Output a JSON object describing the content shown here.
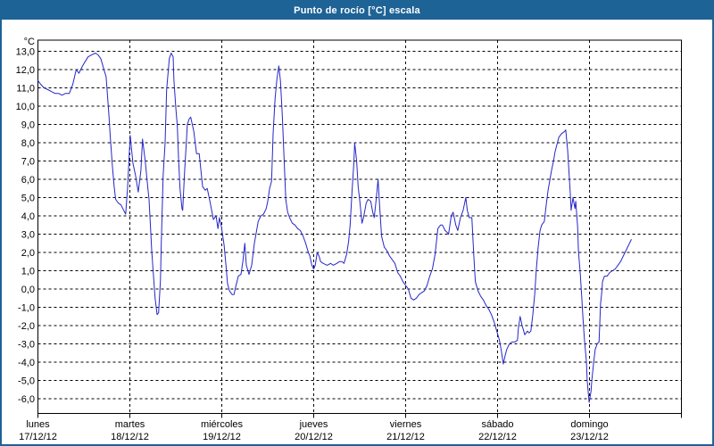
{
  "window": {
    "title": "Punto de rocío [°C] escala"
  },
  "chart_data": {
    "type": "line",
    "title": "Punto de rocío [°C] escala",
    "grid": "dashed horizontal per 1°C and dashed vertical per day",
    "legend": "none",
    "y_axis": {
      "unit_label": "°C",
      "min": -6.0,
      "max": 13.0,
      "tick_step": 1.0,
      "tick_labels": [
        "13,0",
        "12,0",
        "11,0",
        "10,0",
        "9,0",
        "8,0",
        "7,0",
        "6,0",
        "5,0",
        "4,0",
        "3,0",
        "2,0",
        "1,0",
        "0,0",
        "-1,0",
        "-2,0",
        "-3,0",
        "-4,0",
        "-5,0",
        "-6,0"
      ]
    },
    "x_axis": {
      "range_hours": [
        0,
        168
      ],
      "hours_per_day": 24,
      "days": [
        {
          "weekday": "lunes",
          "date": "17/12/12"
        },
        {
          "weekday": "martes",
          "date": "18/12/12"
        },
        {
          "weekday": "miércoles",
          "date": "19/12/12"
        },
        {
          "weekday": "jueves",
          "date": "20/12/12"
        },
        {
          "weekday": "viernes",
          "date": "21/12/12"
        },
        {
          "weekday": "sábado",
          "date": "22/12/12"
        },
        {
          "weekday": "domingo",
          "date": "23/12/12"
        }
      ]
    },
    "series": [
      {
        "name": "Punto de rocío",
        "color": "#2626c9",
        "points": [
          [
            0,
            11.4
          ],
          [
            0.7,
            11.2
          ],
          [
            1.6,
            11.0
          ],
          [
            2.6,
            10.9
          ],
          [
            3.5,
            10.8
          ],
          [
            4.4,
            10.7
          ],
          [
            5.4,
            10.7
          ],
          [
            6.3,
            10.6
          ],
          [
            7.2,
            10.7
          ],
          [
            8.2,
            10.7
          ],
          [
            9.1,
            11.2
          ],
          [
            10,
            12.0
          ],
          [
            10.7,
            11.8
          ],
          [
            11.4,
            12.1
          ],
          [
            12.2,
            12.4
          ],
          [
            13.1,
            12.7
          ],
          [
            14,
            12.8
          ],
          [
            15,
            12.9
          ],
          [
            15.7,
            12.8
          ],
          [
            16.4,
            12.6
          ],
          [
            17.1,
            12.1
          ],
          [
            17.8,
            11.6
          ],
          [
            18.5,
            9.6
          ],
          [
            18.9,
            8.3
          ],
          [
            19.4,
            6.8
          ],
          [
            19.9,
            5.6
          ],
          [
            20.3,
            4.9
          ],
          [
            21,
            4.7
          ],
          [
            21.7,
            4.6
          ],
          [
            22.4,
            4.3
          ],
          [
            22.9,
            4.1
          ],
          [
            23.4,
            5.5
          ],
          [
            24.1,
            8.4
          ],
          [
            24.8,
            6.9
          ],
          [
            25.5,
            6.2
          ],
          [
            26.2,
            5.3
          ],
          [
            26.9,
            6.5
          ],
          [
            27.3,
            8.2
          ],
          [
            28,
            7.0
          ],
          [
            28.7,
            5.5
          ],
          [
            29,
            4.9
          ],
          [
            29.7,
            2.1
          ],
          [
            30.1,
            0.9
          ],
          [
            30.6,
            -0.5
          ],
          [
            31.1,
            -1.4
          ],
          [
            31.5,
            -1.3
          ],
          [
            32,
            0.5
          ],
          [
            32.2,
            2.5
          ],
          [
            32.7,
            6.2
          ],
          [
            33.2,
            8.0
          ],
          [
            33.6,
            10.9
          ],
          [
            34.3,
            12.6
          ],
          [
            34.8,
            12.9
          ],
          [
            35.3,
            12.7
          ],
          [
            35.5,
            11.4
          ],
          [
            36,
            9.9
          ],
          [
            36.4,
            8.9
          ],
          [
            36.7,
            7.2
          ],
          [
            37.1,
            5.5
          ],
          [
            37.6,
            4.4
          ],
          [
            37.8,
            4.3
          ],
          [
            38.3,
            6.5
          ],
          [
            38.8,
            8.2
          ],
          [
            39,
            9.0
          ],
          [
            39.5,
            9.3
          ],
          [
            39.9,
            9.4
          ],
          [
            40.7,
            8.6
          ],
          [
            41.4,
            7.4
          ],
          [
            42.1,
            7.4
          ],
          [
            43,
            5.6
          ],
          [
            43.7,
            5.4
          ],
          [
            44.2,
            5.5
          ],
          [
            44.9,
            4.8
          ],
          [
            45.8,
            3.8
          ],
          [
            46.5,
            4.0
          ],
          [
            47,
            3.3
          ],
          [
            47.4,
            3.9
          ],
          [
            47.9,
            3.4
          ],
          [
            48.6,
            2.4
          ],
          [
            49.1,
            1.3
          ],
          [
            49.5,
            0.3
          ],
          [
            50,
            -0.1
          ],
          [
            50.7,
            -0.3
          ],
          [
            51.2,
            -0.3
          ],
          [
            51.6,
            0.1
          ],
          [
            52.3,
            0.7
          ],
          [
            53,
            0.8
          ],
          [
            53.5,
            1.5
          ],
          [
            54,
            2.5
          ],
          [
            54.4,
            1.3
          ],
          [
            55.1,
            0.8
          ],
          [
            55.8,
            1.3
          ],
          [
            56.5,
            2.5
          ],
          [
            57.5,
            3.7
          ],
          [
            58.2,
            4.0
          ],
          [
            58.9,
            4.1
          ],
          [
            59.6,
            4.4
          ],
          [
            60,
            4.8
          ],
          [
            60.5,
            5.5
          ],
          [
            61,
            5.9
          ],
          [
            61.4,
            8.5
          ],
          [
            61.9,
            10.4
          ],
          [
            62.4,
            11.5
          ],
          [
            62.9,
            12.2
          ],
          [
            63.3,
            11.4
          ],
          [
            63.8,
            9.5
          ],
          [
            64.3,
            6.9
          ],
          [
            64.7,
            4.9
          ],
          [
            65.2,
            4.2
          ],
          [
            65.7,
            3.9
          ],
          [
            66.4,
            3.6
          ],
          [
            67.1,
            3.5
          ],
          [
            67.8,
            3.3
          ],
          [
            68.5,
            3.2
          ],
          [
            69.2,
            2.9
          ],
          [
            69.9,
            2.5
          ],
          [
            70.6,
            2.0
          ],
          [
            71,
            1.8
          ],
          [
            71.5,
            1.3
          ],
          [
            72,
            1.1
          ],
          [
            72.4,
            1.3
          ],
          [
            72.9,
            2.0
          ],
          [
            73.4,
            1.8
          ],
          [
            73.8,
            1.5
          ],
          [
            74.5,
            1.4
          ],
          [
            75.5,
            1.3
          ],
          [
            76.4,
            1.4
          ],
          [
            77.1,
            1.3
          ],
          [
            78,
            1.4
          ],
          [
            78.7,
            1.5
          ],
          [
            79.4,
            1.5
          ],
          [
            79.9,
            1.4
          ],
          [
            80.6,
            1.9
          ],
          [
            81.1,
            2.6
          ],
          [
            81.5,
            3.5
          ],
          [
            82,
            5.3
          ],
          [
            82.5,
            7.0
          ],
          [
            82.7,
            8.0
          ],
          [
            83.2,
            7.0
          ],
          [
            83.6,
            5.6
          ],
          [
            84.1,
            4.7
          ],
          [
            84.6,
            3.6
          ],
          [
            85,
            3.9
          ],
          [
            85.7,
            4.7
          ],
          [
            86.2,
            4.9
          ],
          [
            86.9,
            4.8
          ],
          [
            87.4,
            4.2
          ],
          [
            87.8,
            3.9
          ],
          [
            88.3,
            4.9
          ],
          [
            88.8,
            6.0
          ],
          [
            89.2,
            4.6
          ],
          [
            89.7,
            2.9
          ],
          [
            90.4,
            2.3
          ],
          [
            91.1,
            2.1
          ],
          [
            91.8,
            1.8
          ],
          [
            92.5,
            1.6
          ],
          [
            93.2,
            1.4
          ],
          [
            93.9,
            0.9
          ],
          [
            94.6,
            0.7
          ],
          [
            95.3,
            0.4
          ],
          [
            96,
            0.2
          ],
          [
            96.7,
            0.0
          ],
          [
            97.4,
            -0.5
          ],
          [
            98.1,
            -0.6
          ],
          [
            98.8,
            -0.5
          ],
          [
            99.5,
            -0.3
          ],
          [
            100.2,
            -0.2
          ],
          [
            100.9,
            -0.1
          ],
          [
            101.6,
            0.2
          ],
          [
            102.3,
            0.7
          ],
          [
            103,
            1.1
          ],
          [
            103.7,
            1.9
          ],
          [
            104.4,
            3.3
          ],
          [
            105.1,
            3.5
          ],
          [
            105.6,
            3.5
          ],
          [
            106.3,
            3.2
          ],
          [
            106.8,
            3.1
          ],
          [
            107.2,
            3.0
          ],
          [
            107.9,
            4.0
          ],
          [
            108.4,
            4.2
          ],
          [
            109.1,
            3.5
          ],
          [
            109.6,
            3.2
          ],
          [
            110.3,
            3.9
          ],
          [
            111,
            4.3
          ],
          [
            111.7,
            5.0
          ],
          [
            112.1,
            4.3
          ],
          [
            112.6,
            3.9
          ],
          [
            113.3,
            3.9
          ],
          [
            113.8,
            1.8
          ],
          [
            114.2,
            0.4
          ],
          [
            114.9,
            -0.1
          ],
          [
            115.6,
            -0.4
          ],
          [
            116.3,
            -0.6
          ],
          [
            117,
            -0.9
          ],
          [
            117.7,
            -1.1
          ],
          [
            118.4,
            -1.4
          ],
          [
            119.1,
            -1.8
          ],
          [
            119.8,
            -2.3
          ],
          [
            120.5,
            -2.8
          ],
          [
            121,
            -3.4
          ],
          [
            121.5,
            -4.1
          ],
          [
            121.9,
            -3.7
          ],
          [
            122.4,
            -3.3
          ],
          [
            123.1,
            -3.0
          ],
          [
            123.8,
            -2.9
          ],
          [
            124.5,
            -2.9
          ],
          [
            125.2,
            -2.8
          ],
          [
            125.4,
            -2.2
          ],
          [
            125.9,
            -1.5
          ],
          [
            126.4,
            -2.0
          ],
          [
            127.1,
            -2.5
          ],
          [
            127.8,
            -2.3
          ],
          [
            128.2,
            -2.4
          ],
          [
            128.7,
            -2.3
          ],
          [
            129.2,
            -1.4
          ],
          [
            129.7,
            -0.3
          ],
          [
            130.1,
            1.0
          ],
          [
            130.6,
            2.3
          ],
          [
            131.1,
            3.2
          ],
          [
            131.5,
            3.5
          ],
          [
            132.2,
            3.7
          ],
          [
            132.7,
            4.6
          ],
          [
            133.2,
            5.4
          ],
          [
            133.6,
            5.9
          ],
          [
            134.1,
            6.5
          ],
          [
            134.6,
            7.0
          ],
          [
            135,
            7.5
          ],
          [
            135.5,
            7.9
          ],
          [
            136,
            8.3
          ],
          [
            136.7,
            8.5
          ],
          [
            137.4,
            8.6
          ],
          [
            137.8,
            8.7
          ],
          [
            138.3,
            7.6
          ],
          [
            138.5,
            6.9
          ],
          [
            139,
            5.2
          ],
          [
            139.2,
            4.3
          ],
          [
            139.7,
            5.0
          ],
          [
            140.2,
            4.4
          ],
          [
            140.4,
            4.8
          ],
          [
            140.9,
            3.4
          ],
          [
            141.1,
            2.1
          ],
          [
            141.6,
            0.8
          ],
          [
            142,
            -0.5
          ],
          [
            142.3,
            -1.6
          ],
          [
            142.7,
            -2.8
          ],
          [
            143.2,
            -4.0
          ],
          [
            143.4,
            -5.0
          ],
          [
            143.9,
            -6.2
          ],
          [
            144.4,
            -5.6
          ],
          [
            144.6,
            -5.0
          ],
          [
            145.1,
            -4.0
          ],
          [
            145.5,
            -3.3
          ],
          [
            146,
            -3.0
          ],
          [
            146.5,
            -2.9
          ],
          [
            146.7,
            -1.8
          ],
          [
            146.9,
            -0.8
          ],
          [
            147.2,
            -0.2
          ],
          [
            147.4,
            0.4
          ],
          [
            147.9,
            0.7
          ],
          [
            148.6,
            0.7
          ],
          [
            149.3,
            0.9
          ],
          [
            150,
            1.0
          ],
          [
            150.7,
            1.1
          ],
          [
            151.4,
            1.3
          ],
          [
            152.1,
            1.5
          ],
          [
            152.8,
            1.8
          ],
          [
            153.5,
            2.1
          ],
          [
            154.2,
            2.4
          ],
          [
            154.9,
            2.7
          ]
        ]
      }
    ]
  },
  "colors": {
    "titlebar_bg": "#1e6396",
    "titlebar_text": "#ffffff",
    "frame_border": "#1e6396",
    "plot_border": "#000000",
    "gridline": "#000000",
    "series_line": "#2626c9",
    "background": "#ffffff"
  }
}
